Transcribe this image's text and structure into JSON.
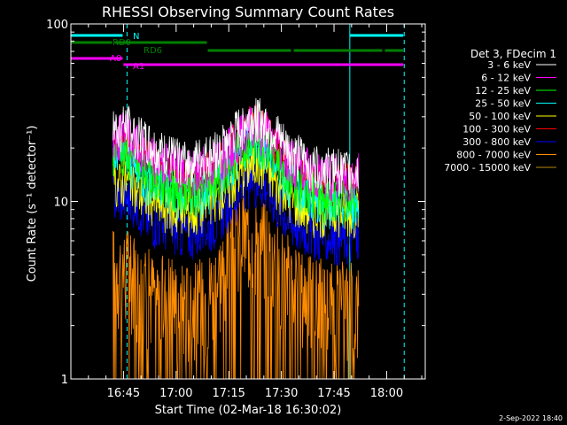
{
  "chart_data": {
    "type": "line",
    "title": "RHESSI Observing Summary Count Rates",
    "xlabel": "Start Time (02-Mar-18 16:30:02)",
    "ylabel": "Count Rate (s⁻¹ detector⁻¹)",
    "yscale": "log",
    "ylim": [
      1,
      100
    ],
    "xlim_minutes": [
      0,
      101
    ],
    "y_ticks": [
      "1",
      "10",
      "100"
    ],
    "x_ticks": [
      {
        "label": "16:45",
        "min": 15
      },
      {
        "label": "17:00",
        "min": 30
      },
      {
        "label": "17:15",
        "min": 45
      },
      {
        "label": "17:30",
        "min": 60
      },
      {
        "label": "17:45",
        "min": 75
      },
      {
        "label": "18:00",
        "min": 90
      }
    ],
    "legend_title": "Det 3, FDecim 1",
    "legend_position": "right",
    "series": [
      {
        "name": "3 - 6 keV",
        "color": "#ffffff",
        "level": [
          28,
          31,
          27,
          24,
          21,
          20,
          19,
          19,
          20,
          22,
          25,
          30,
          34,
          32,
          27,
          22,
          20,
          18,
          18,
          17,
          17,
          17
        ]
      },
      {
        "name": "6 - 12 keV",
        "color": "#ff00ff",
        "level": [
          26,
          28,
          24,
          21,
          19,
          18,
          17,
          17,
          18,
          20,
          23,
          27,
          30,
          28,
          24,
          20,
          18,
          17,
          16,
          16,
          16,
          16
        ]
      },
      {
        "name": "12 - 25 keV",
        "color": "#00ff00",
        "level": [
          22,
          22,
          19,
          17,
          15,
          14,
          13,
          13,
          14,
          16,
          19,
          23,
          26,
          24,
          20,
          16,
          14,
          13,
          12,
          12,
          12,
          12
        ]
      },
      {
        "name": "25 - 50 keV",
        "color": "#00ffff",
        "level": [
          20,
          20,
          17,
          15,
          14,
          13,
          12,
          12,
          13,
          15,
          18,
          22,
          25,
          23,
          18,
          15,
          13,
          12,
          11,
          11,
          11,
          11
        ]
      },
      {
        "name": "50 - 100 keV",
        "color": "#ffff00",
        "level": [
          14,
          15,
          13,
          12,
          11,
          10,
          10,
          10,
          11,
          12,
          14,
          17,
          19,
          18,
          14,
          12,
          11,
          10,
          10,
          10,
          10,
          10
        ]
      },
      {
        "name": "100 - 300 keV",
        "color": "#ff0000",
        "level": [
          22,
          24,
          21,
          19,
          17,
          16,
          15,
          15,
          16,
          18,
          22,
          27,
          31,
          28,
          22,
          18,
          16,
          15,
          14,
          14,
          14,
          14
        ]
      },
      {
        "name": "300 - 800 keV",
        "color": "#0000ff",
        "level": [
          12,
          12,
          11,
          9,
          8.5,
          8,
          7.5,
          7.5,
          8,
          9,
          11,
          13,
          15,
          14,
          11,
          9,
          8,
          7.5,
          7,
          7,
          7,
          7
        ]
      },
      {
        "name": "800 - 7000 keV",
        "color": "#ff8c00",
        "level": [
          5,
          5,
          4.2,
          3.8,
          3.5,
          3.3,
          3.2,
          3.2,
          3.5,
          4.5,
          6,
          7.5,
          8,
          7,
          5.5,
          4.5,
          3.8,
          3.5,
          3.3,
          3.2,
          3.2,
          3.2
        ]
      },
      {
        "name": "7000 - 15000 keV",
        "color": "#b8860b",
        "level": []
      }
    ],
    "series_time_range_min": [
      12,
      82
    ],
    "attenuator_bars": [
      {
        "label": "N",
        "color": "#00ffff",
        "segments": [
          [
            0,
            15
          ],
          [
            79,
            95
          ]
        ]
      },
      {
        "label": "RD0",
        "color": "#008000",
        "segments": [
          [
            0,
            12
          ],
          [
            12,
            39
          ]
        ]
      },
      {
        "label": "RD6",
        "color": "#008000",
        "segments": [
          [
            39,
            63
          ],
          [
            63,
            89
          ],
          [
            89,
            95
          ]
        ]
      },
      {
        "label": "A0",
        "color": "#ff00ff",
        "segments": [
          [
            0,
            15
          ]
        ]
      },
      {
        "label": "A1",
        "color": "#ff00ff",
        "segments": [
          [
            15,
            95
          ]
        ]
      }
    ],
    "vertical_markers": [
      {
        "min": 0,
        "style": "solid",
        "color": "#00ffff"
      },
      {
        "min": 16,
        "style": "dashed",
        "color": "#00ffff"
      },
      {
        "min": 79.5,
        "style": "solid",
        "color": "#00ffff"
      },
      {
        "min": 95,
        "style": "dashed",
        "color": "#00ffff"
      }
    ]
  },
  "footer_date": "2-Sep-2022 18:40"
}
